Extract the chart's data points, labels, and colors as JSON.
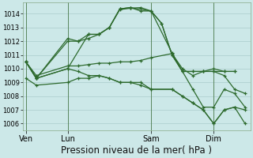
{
  "background_color": "#cce8e8",
  "grid_color": "#aacccc",
  "line_color": "#2d6a2d",
  "xlabel": "Pression niveau de la mer( hPa )",
  "xlabel_fontsize": 8.5,
  "ylim": [
    1005.5,
    1014.8
  ],
  "yticks": [
    1006,
    1007,
    1008,
    1009,
    1010,
    1011,
    1012,
    1013,
    1014
  ],
  "ytick_fontsize": 6.5,
  "xtick_labels": [
    "Ven",
    "Lun",
    "Sam",
    "Dim"
  ],
  "xtick_positions": [
    0,
    4,
    12,
    18
  ],
  "xlim": [
    -0.3,
    21.5
  ],
  "vline_positions": [
    0,
    4,
    12,
    18
  ],
  "series": [
    {
      "x": [
        0,
        1,
        4,
        5,
        6,
        7,
        8,
        9,
        10,
        12,
        13,
        14,
        15,
        16,
        17,
        18,
        19,
        20
      ],
      "y": [
        1010.5,
        1009.3,
        1012.2,
        1012.0,
        1012.2,
        1012.5,
        1013.0,
        1014.35,
        1014.45,
        1014.2,
        1013.3,
        1011.0,
        1009.8,
        1009.8,
        1009.8,
        1010.0,
        1009.8,
        1009.8
      ]
    },
    {
      "x": [
        0,
        1,
        4,
        5,
        6,
        7,
        8,
        9,
        10,
        11,
        12,
        13,
        14,
        15,
        16,
        17,
        18,
        19,
        20
      ],
      "y": [
        1010.5,
        1009.3,
        1012.0,
        1012.0,
        1012.5,
        1012.5,
        1013.0,
        1014.3,
        1014.4,
        1014.45,
        1014.2,
        1013.3,
        1011.0,
        1009.8,
        1009.8,
        1009.8,
        1009.8,
        1009.8,
        1009.8
      ]
    },
    {
      "x": [
        0,
        1,
        4,
        6,
        7,
        8,
        9,
        10,
        11,
        12,
        14,
        15,
        16,
        17,
        18,
        19,
        20,
        21
      ],
      "y": [
        1010.5,
        1009.3,
        1010.0,
        1012.5,
        1012.5,
        1013.0,
        1014.35,
        1014.45,
        1014.2,
        1014.2,
        1011.15,
        1009.8,
        1008.5,
        1007.2,
        1007.2,
        1008.5,
        1008.2,
        1007.2
      ]
    },
    {
      "x": [
        0,
        1,
        4,
        5,
        6,
        7,
        8,
        9,
        10,
        11,
        12,
        14,
        15,
        16,
        17,
        18,
        19,
        20,
        21
      ],
      "y": [
        1009.3,
        1008.8,
        1009.0,
        1009.3,
        1009.3,
        1009.5,
        1009.3,
        1009.0,
        1009.0,
        1008.8,
        1008.5,
        1008.5,
        1008.0,
        1007.5,
        1007.0,
        1006.0,
        1007.0,
        1007.2,
        1007.0
      ]
    },
    {
      "x": [
        0,
        1,
        4,
        5,
        6,
        7,
        8,
        9,
        10,
        11,
        12,
        14,
        15,
        16,
        17,
        18,
        19,
        20,
        21
      ],
      "y": [
        1010.5,
        1009.5,
        1010.2,
        1010.2,
        1010.3,
        1010.4,
        1010.4,
        1010.5,
        1010.5,
        1010.6,
        1010.8,
        1011.1,
        1010.0,
        1009.5,
        1009.8,
        1009.8,
        1009.5,
        1008.5,
        1008.2
      ]
    },
    {
      "x": [
        0,
        1,
        4,
        5,
        6,
        7,
        8,
        9,
        10,
        11,
        12,
        14,
        15,
        16,
        17,
        18,
        19,
        20,
        21
      ],
      "y": [
        1010.5,
        1009.3,
        1010.0,
        1009.8,
        1009.5,
        1009.5,
        1009.3,
        1009.0,
        1009.0,
        1009.0,
        1008.5,
        1008.5,
        1008.0,
        1007.5,
        1007.0,
        1006.0,
        1007.0,
        1007.2,
        1006.0
      ]
    }
  ]
}
